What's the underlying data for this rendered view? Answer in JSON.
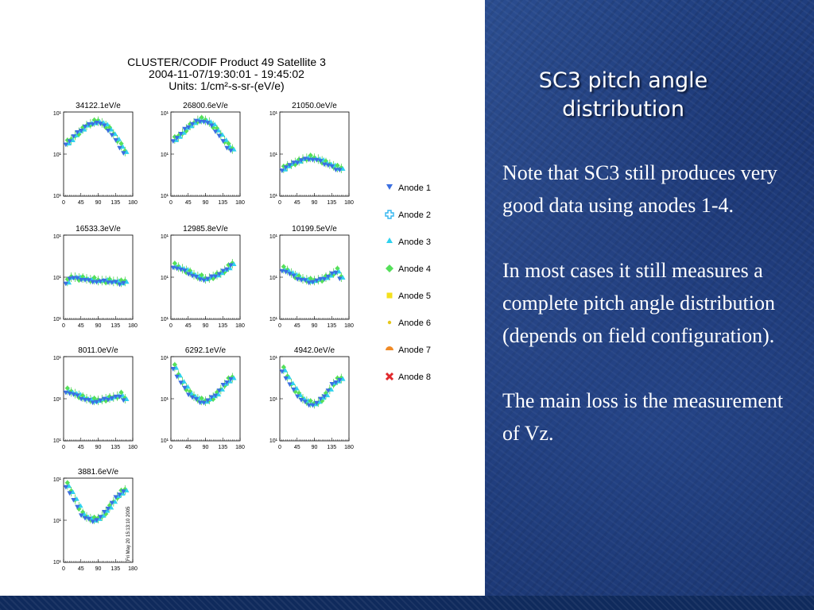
{
  "slide": {
    "title": "SC3 pitch angle distribution",
    "paragraphs": [
      "Note that SC3 still produces very good data using anodes 1-4.",
      "In most cases it still measures a complete pitch angle distribution (depends on field configuration).",
      "The main loss is the measurement of Vz."
    ]
  },
  "figure": {
    "header_lines": [
      "CLUSTER/CODIF  Product 49 Satellite 3",
      "2004-11-07/19:30:01 - 19:45:02",
      "Units: 1/cm²-s-sr-(eV/e)"
    ],
    "timestamp": "Fri May 20 15:13:10 2005",
    "xticks": [
      "0",
      "45",
      "90",
      "135",
      "180"
    ],
    "ytick_labels": [
      "10¹",
      "10¹",
      "10¹"
    ],
    "legend": [
      {
        "label": "Anode 1",
        "marker": "tri-down",
        "color": "#3b6fe0"
      },
      {
        "label": "Anode 2",
        "marker": "cross-open",
        "color": "#33b6f0"
      },
      {
        "label": "Anode 3",
        "marker": "tri-up",
        "color": "#2fd2ee"
      },
      {
        "label": "Anode 4",
        "marker": "diamond",
        "color": "#55e05a"
      },
      {
        "label": "Anode 5",
        "marker": "square",
        "color": "#f4e01c"
      },
      {
        "label": "Anode 6",
        "marker": "dot",
        "color": "#e6c81c"
      },
      {
        "label": "Anode 7",
        "marker": "half-circle",
        "color": "#f08a26"
      },
      {
        "label": "Anode 8",
        "marker": "bowtie",
        "color": "#e0282c"
      }
    ]
  },
  "chart_data": [
    {
      "type": "scatter",
      "title": "34122.1eV/e",
      "xlim": [
        0,
        180
      ],
      "x": [
        10,
        20,
        30,
        40,
        50,
        60,
        70,
        80,
        90,
        100,
        110,
        120,
        130,
        140,
        150,
        160
      ],
      "y": [
        0.64,
        0.67,
        0.72,
        0.76,
        0.8,
        0.84,
        0.86,
        0.88,
        0.89,
        0.87,
        0.84,
        0.8,
        0.74,
        0.67,
        0.6,
        0.53
      ]
    },
    {
      "type": "scatter",
      "title": "26800.6eV/e",
      "xlim": [
        0,
        180
      ],
      "x": [
        10,
        20,
        30,
        40,
        50,
        60,
        70,
        80,
        90,
        100,
        110,
        120,
        130,
        140,
        150,
        160
      ],
      "y": [
        0.68,
        0.71,
        0.75,
        0.8,
        0.84,
        0.87,
        0.9,
        0.91,
        0.9,
        0.88,
        0.84,
        0.79,
        0.73,
        0.66,
        0.6,
        0.56
      ]
    },
    {
      "type": "scatter",
      "title": "21050.0eV/e",
      "xlim": [
        0,
        180
      ],
      "x": [
        10,
        20,
        30,
        40,
        50,
        60,
        70,
        80,
        90,
        100,
        110,
        120,
        130,
        140,
        150,
        160
      ],
      "y": [
        0.33,
        0.36,
        0.38,
        0.4,
        0.42,
        0.44,
        0.45,
        0.46,
        0.45,
        0.44,
        0.42,
        0.4,
        0.38,
        0.36,
        0.34,
        0.33
      ]
    },
    {
      "type": "scatter",
      "title": "16533.3eV/e",
      "xlim": [
        0,
        180
      ],
      "x": [
        10,
        20,
        30,
        40,
        50,
        60,
        70,
        80,
        90,
        100,
        110,
        120,
        130,
        140,
        150,
        160
      ],
      "y": [
        0.45,
        0.5,
        0.5,
        0.49,
        0.49,
        0.48,
        0.47,
        0.47,
        0.46,
        0.46,
        0.46,
        0.46,
        0.45,
        0.45,
        0.44,
        0.45
      ]
    },
    {
      "type": "scatter",
      "title": "12985.8eV/e",
      "xlim": [
        0,
        180
      ],
      "x": [
        10,
        20,
        30,
        40,
        50,
        60,
        70,
        80,
        90,
        100,
        110,
        120,
        130,
        140,
        150,
        160
      ],
      "y": [
        0.64,
        0.62,
        0.6,
        0.58,
        0.56,
        0.53,
        0.51,
        0.5,
        0.48,
        0.49,
        0.51,
        0.53,
        0.55,
        0.58,
        0.62,
        0.66
      ]
    },
    {
      "type": "scatter",
      "title": "10199.5eV/e",
      "xlim": [
        0,
        180
      ],
      "x": [
        10,
        20,
        30,
        40,
        50,
        60,
        70,
        80,
        90,
        100,
        110,
        120,
        130,
        140,
        150,
        160
      ],
      "y": [
        0.6,
        0.58,
        0.55,
        0.52,
        0.5,
        0.48,
        0.47,
        0.46,
        0.46,
        0.47,
        0.48,
        0.5,
        0.52,
        0.55,
        0.58,
        0.5
      ]
    },
    {
      "type": "scatter",
      "title": "8011.0eV/e",
      "xlim": [
        0,
        180
      ],
      "x": [
        10,
        20,
        30,
        40,
        50,
        60,
        70,
        80,
        90,
        100,
        110,
        120,
        130,
        140,
        150,
        160
      ],
      "y": [
        0.6,
        0.58,
        0.56,
        0.54,
        0.52,
        0.5,
        0.49,
        0.48,
        0.48,
        0.49,
        0.5,
        0.51,
        0.52,
        0.53,
        0.55,
        0.5
      ]
    },
    {
      "type": "scatter",
      "title": "6292.1eV/e",
      "xlim": [
        0,
        180
      ],
      "x": [
        10,
        20,
        30,
        40,
        50,
        60,
        70,
        80,
        90,
        100,
        110,
        120,
        130,
        140,
        150,
        160
      ],
      "y": [
        0.88,
        0.78,
        0.7,
        0.63,
        0.57,
        0.53,
        0.5,
        0.48,
        0.47,
        0.49,
        0.52,
        0.56,
        0.61,
        0.67,
        0.72,
        0.75
      ]
    },
    {
      "type": "scatter",
      "title": "4942.0eV/e",
      "xlim": [
        0,
        180
      ],
      "x": [
        10,
        20,
        30,
        40,
        50,
        60,
        70,
        80,
        90,
        100,
        110,
        120,
        130,
        140,
        150,
        160
      ],
      "y": [
        0.85,
        0.76,
        0.68,
        0.61,
        0.55,
        0.5,
        0.47,
        0.45,
        0.44,
        0.46,
        0.5,
        0.55,
        0.61,
        0.68,
        0.72,
        0.74
      ]
    },
    {
      "type": "scatter",
      "title": "3881.6eV/e",
      "xlim": [
        0,
        180
      ],
      "x": [
        10,
        20,
        30,
        40,
        50,
        60,
        70,
        80,
        90,
        100,
        110,
        120,
        130,
        140,
        150,
        160
      ],
      "y": [
        0.92,
        0.84,
        0.75,
        0.66,
        0.58,
        0.54,
        0.52,
        0.51,
        0.52,
        0.55,
        0.6,
        0.66,
        0.72,
        0.78,
        0.83,
        0.86
      ]
    }
  ]
}
